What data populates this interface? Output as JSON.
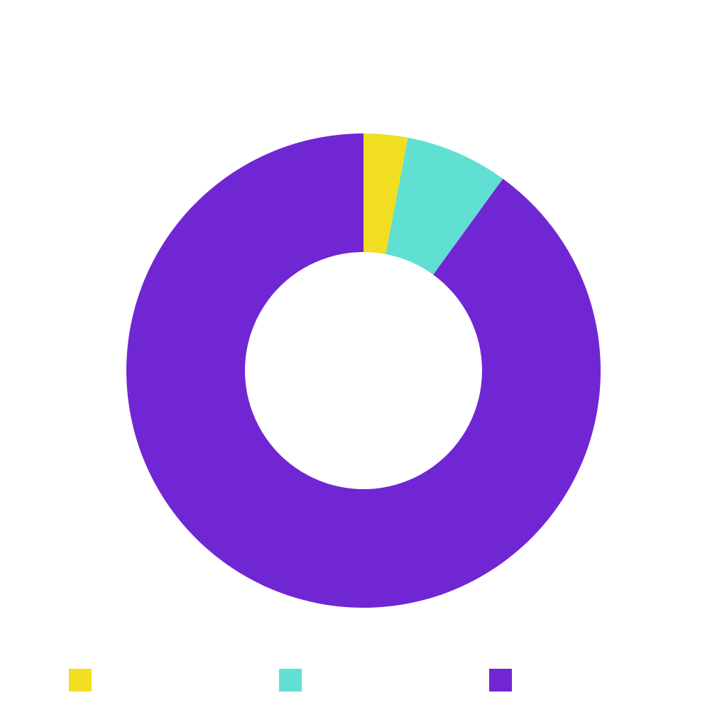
{
  "chart_data": {
    "type": "pie",
    "donut": true,
    "categories": [
      "",
      "",
      ""
    ],
    "values": [
      3,
      7,
      90
    ],
    "colors": [
      "#f2de21",
      "#5fe0d2",
      "#7126d3"
    ],
    "title": "",
    "legend": {
      "position": "bottom",
      "entries": [
        "",
        "",
        ""
      ]
    }
  }
}
